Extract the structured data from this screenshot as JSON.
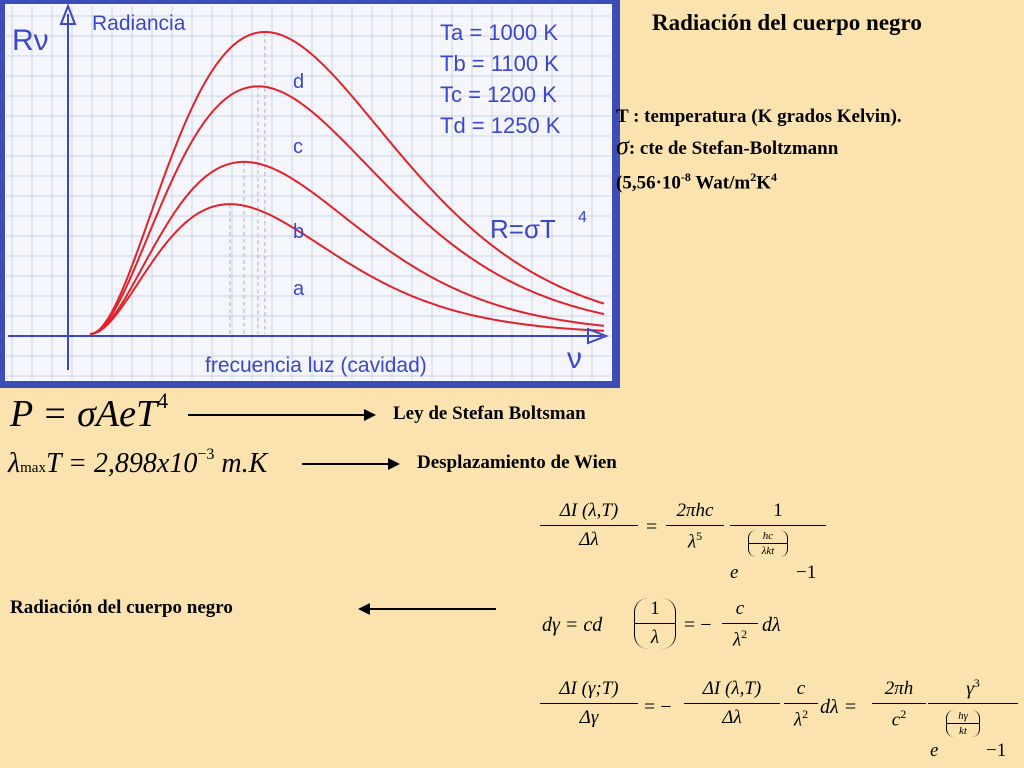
{
  "chart_data": {
    "type": "line",
    "title": "Radiancia",
    "ylabel": "Rν",
    "xlabel": "frecuencia luz (cavidad)",
    "xaxis_symbol": "ν",
    "formula": "R=σT",
    "formula_exp": "4",
    "legend_entries": [
      "Ta = 1000 K",
      "Tb = 1100 K",
      "Tc = 1200 K",
      "Td = 1250 K"
    ],
    "series": [
      {
        "name": "a",
        "temperature_K": 1000,
        "relative_peak": 0.43
      },
      {
        "name": "b",
        "temperature_K": 1100,
        "relative_peak": 0.57
      },
      {
        "name": "c",
        "temperature_K": 1200,
        "relative_peak": 0.82
      },
      {
        "name": "d",
        "temperature_K": 1250,
        "relative_peak": 1.0
      }
    ],
    "grid": true,
    "legend_placement": "top-right"
  },
  "title": "Radiación del cuerpo negro",
  "notes": {
    "line1": "T : temperatura (K grados Kelvin).",
    "sigma": "σ",
    "line2": ": cte de Stefan-Boltzmann",
    "line3_a": "(5,56·10",
    "line3_exp": "-8",
    "line3_b": " Wat/m",
    "line3_m_exp": "2",
    "line3_c": "K",
    "line3_k_exp": "4"
  },
  "eq_stefan": {
    "lhs": "P = σAeT",
    "exp": "4",
    "label": "Ley de Stefan Boltsman"
  },
  "eq_wien": {
    "lambda": "λ",
    "sub": "max",
    "mid": "T = 2,898x10",
    "exp": "−3",
    "unit": " m.K",
    "label": "Desplazamiento de Wien"
  },
  "eq_planck": {
    "lhs_num": "ΔI (λ,T)",
    "lhs_den": "Δλ",
    "eq": "=",
    "c1_num": "2πhc",
    "c1_den": "λ",
    "c1_den_exp": "5",
    "c2_num": "1",
    "c2_e": "e",
    "c2_exp_num": "hc",
    "c2_exp_den": "λkt",
    "c2_minus": "−1"
  },
  "eq_dgamma": {
    "lhs": "dγ = cd",
    "paren_num": "1",
    "paren_den": "λ",
    "eq": "= −",
    "c_num": "c",
    "c_den": "λ",
    "c_den_exp": "2",
    "tail": "dλ"
  },
  "eq_gamma": {
    "lhs_num": "ΔI (γ;T)",
    "lhs_den": "Δγ",
    "eq": "= −",
    "a_num": "ΔI (λ,T)",
    "a_den": "Δλ",
    "b_num": "c",
    "b_den": "λ",
    "b_den_exp": "2",
    "mid": "dλ =",
    "c_num": "2πh",
    "c_den": "c",
    "c_den_exp": "2",
    "d_num": "γ",
    "d_num_exp": "3",
    "d_e": "e",
    "d_exp_num": "hγ",
    "d_exp_den": "kt",
    "d_minus": "−1"
  },
  "bottom_label": "Radiación del cuerpo negro"
}
